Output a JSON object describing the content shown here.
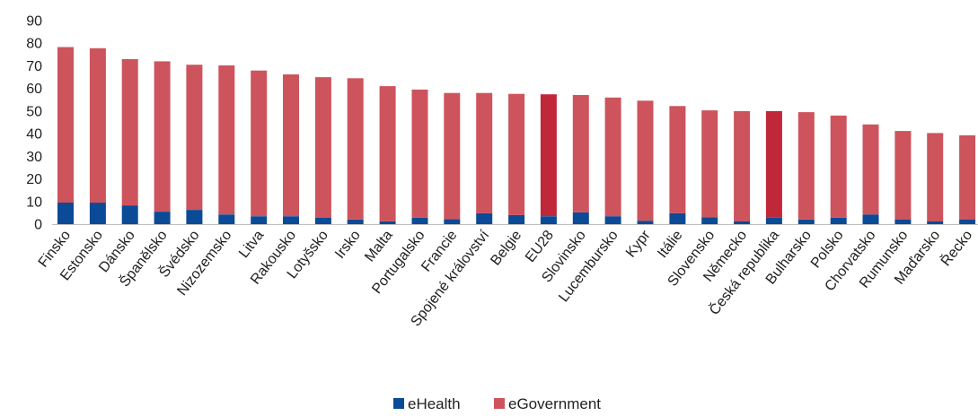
{
  "chart_data": {
    "type": "bar",
    "stacked": true,
    "categories": [
      "Finsko",
      "Estonsko",
      "Dánsko",
      "Španělsko",
      "Švédsko",
      "Nizozemsko",
      "Litva",
      "Rakousko",
      "Lotyšsko",
      "Irsko",
      "Malta",
      "Portugalsko",
      "Francie",
      "Spojené království",
      "Belgie",
      "EU28",
      "Slovinsko",
      "Lucembursko",
      "Kypr",
      "Itálie",
      "Slovensko",
      "Německo",
      "Česká republika",
      "Bulharsko",
      "Polsko",
      "Chorvatsko",
      "Rumunsko",
      "Maďarsko",
      "Řecko"
    ],
    "series": [
      {
        "name": "eHealth",
        "color": "#0b4a96",
        "values": [
          9.5,
          9.5,
          8.3,
          5.5,
          6.3,
          4.3,
          3.5,
          3.5,
          2.8,
          2.0,
          1.2,
          2.8,
          2.2,
          4.8,
          4.0,
          3.5,
          5.2,
          3.5,
          1.5,
          4.8,
          3.0,
          1.2,
          2.8,
          2.0,
          2.8,
          4.3,
          2.0,
          1.2,
          2.0
        ]
      },
      {
        "name": "eGovernment",
        "color": "#cd545c",
        "values": [
          68.8,
          68.3,
          64.7,
          66.5,
          64.2,
          65.9,
          64.4,
          62.7,
          62.2,
          62.5,
          59.8,
          56.7,
          55.8,
          53.2,
          53.6,
          53.9,
          51.9,
          52.5,
          53.1,
          47.4,
          47.3,
          48.8,
          47.2,
          47.5,
          45.2,
          39.8,
          39.2,
          39.1,
          37.3
        ]
      }
    ],
    "highlight": {
      "categories": [
        "EU28",
        "Česká republika"
      ],
      "ehealth_color": "#0b4a96",
      "egovernment_color": "#c0283a"
    },
    "ylim": [
      0,
      90
    ],
    "yticks": [
      0,
      10,
      20,
      30,
      40,
      50,
      60,
      70,
      80,
      90
    ],
    "title": "",
    "xlabel": "",
    "ylabel": "",
    "grid": false,
    "legend_position": "bottom-center"
  }
}
